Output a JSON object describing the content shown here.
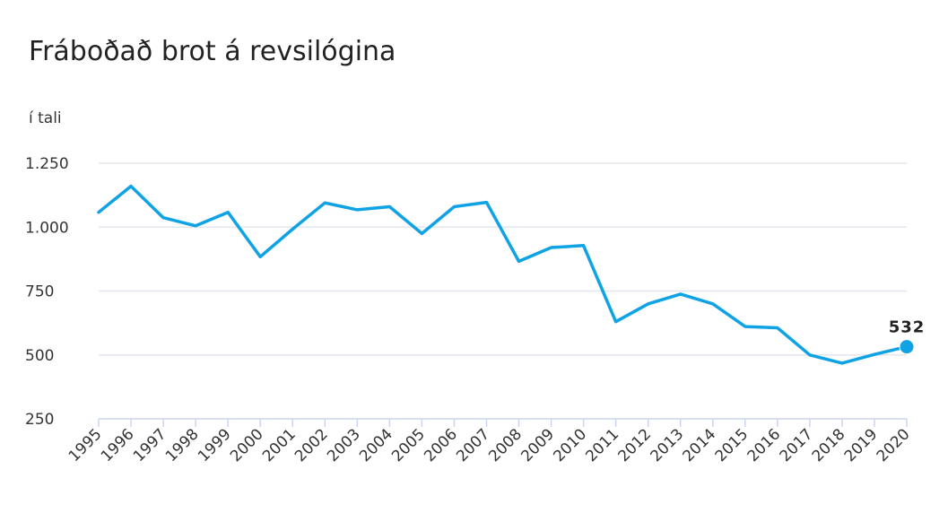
{
  "chart_data": {
    "type": "line",
    "title": "Fráboðað brot á revsilógina",
    "ylabel": "í tali",
    "xlabel": "",
    "categories": [
      "1995",
      "1996",
      "1997",
      "1998",
      "1999",
      "2000",
      "2001",
      "2002",
      "2003",
      "2004",
      "2005",
      "2006",
      "2007",
      "2008",
      "2009",
      "2010",
      "2011",
      "2012",
      "2013",
      "2014",
      "2015",
      "2016",
      "2017",
      "2018",
      "2019",
      "2020"
    ],
    "series": [
      {
        "values": [
          1058,
          1160,
          1037,
          1005,
          1058,
          884,
          992,
          1095,
          1068,
          1080,
          975,
          1080,
          1097,
          866,
          920,
          928,
          630,
          700,
          738,
          700,
          611,
          606,
          500,
          468,
          502,
          532
        ]
      }
    ],
    "ylim": [
      250,
      1250
    ],
    "yticks": [
      250,
      500,
      750,
      1000,
      1250
    ],
    "ytick_labels": [
      "250",
      "500",
      "750",
      "1.000",
      "1.250"
    ],
    "data_labels": [
      {
        "index": 25,
        "text": "532"
      }
    ],
    "grid": true,
    "legend": "none",
    "colors": {
      "line": "#0fa3e6",
      "grid": "#e3e6ec",
      "axis": "#ccd6eb",
      "text": "#333333"
    }
  }
}
